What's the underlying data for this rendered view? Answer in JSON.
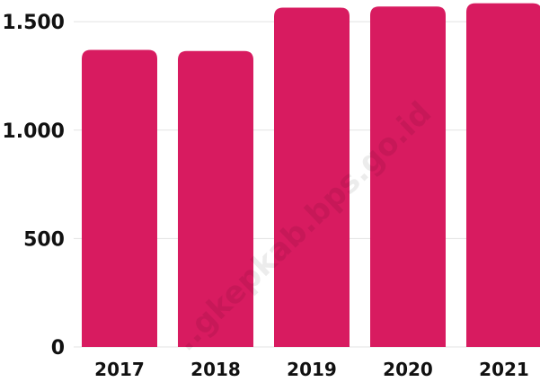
{
  "watermark": "..gkepkab.bps.go.id",
  "colors": {
    "bar": "#d81b60",
    "grid": "#e3e3e3",
    "text": "#111111"
  },
  "chart_data": {
    "type": "bar",
    "categories": [
      "2017",
      "2018",
      "2019",
      "2020",
      "2021"
    ],
    "values": [
      1370,
      1365,
      1565,
      1570,
      1585
    ],
    "ylim": [
      0,
      1600
    ],
    "yticks": [
      {
        "value": 0,
        "label": "0"
      },
      {
        "value": 500,
        "label": "500"
      },
      {
        "value": 1000,
        "label": "1.000"
      },
      {
        "value": 1500,
        "label": "1.500"
      }
    ],
    "grid": true,
    "legend": "none",
    "title": "",
    "xlabel": "",
    "ylabel": ""
  }
}
